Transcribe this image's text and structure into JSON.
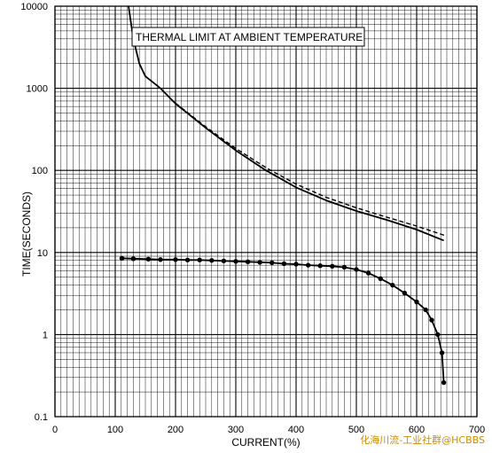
{
  "chart_data": {
    "type": "line",
    "title": "",
    "xlabel": "CURRENT(%)",
    "ylabel": "TIME(SECONDS)",
    "x_scale": "linear",
    "y_scale": "log",
    "xlim": [
      0,
      700
    ],
    "ylim": [
      0.1,
      10000
    ],
    "x_ticks": [
      "0",
      "100",
      "200",
      "300",
      "400",
      "500",
      "600",
      "700"
    ],
    "y_ticks": [
      "0.1",
      "1",
      "10",
      "100",
      "1000",
      "10000"
    ],
    "grid": true,
    "annotation": "THERMAL LIMIT AT AMBIENT TEMPERATURE",
    "series": [
      {
        "style": "solid",
        "points": [
          [
            122,
            10000
          ],
          [
            130,
            4000
          ],
          [
            140,
            2000
          ],
          [
            150,
            1400
          ],
          [
            175,
            1000
          ],
          [
            200,
            650
          ],
          [
            250,
            330
          ],
          [
            300,
            175
          ],
          [
            350,
            100
          ],
          [
            400,
            62
          ],
          [
            450,
            43
          ],
          [
            500,
            32
          ],
          [
            550,
            25
          ],
          [
            600,
            19
          ],
          [
            645,
            14
          ]
        ]
      },
      {
        "style": "dashed",
        "points": [
          [
            200,
            660
          ],
          [
            250,
            340
          ],
          [
            300,
            185
          ],
          [
            350,
            108
          ],
          [
            400,
            68
          ],
          [
            450,
            47
          ],
          [
            500,
            35
          ],
          [
            550,
            27
          ],
          [
            600,
            21
          ],
          [
            648,
            16
          ]
        ]
      },
      {
        "style": "solid-markers",
        "points": [
          [
            111,
            8.5
          ],
          [
            130,
            8.4
          ],
          [
            155,
            8.3
          ],
          [
            175,
            8.2
          ],
          [
            200,
            8.2
          ],
          [
            220,
            8.1
          ],
          [
            240,
            8.1
          ],
          [
            260,
            8.0
          ],
          [
            280,
            7.9
          ],
          [
            300,
            7.8
          ],
          [
            320,
            7.7
          ],
          [
            340,
            7.6
          ],
          [
            360,
            7.5
          ],
          [
            380,
            7.3
          ],
          [
            400,
            7.2
          ],
          [
            420,
            7.0
          ],
          [
            440,
            6.9
          ],
          [
            460,
            6.8
          ],
          [
            480,
            6.6
          ],
          [
            500,
            6.2
          ],
          [
            520,
            5.6
          ],
          [
            540,
            4.8
          ],
          [
            560,
            4.0
          ],
          [
            580,
            3.2
          ],
          [
            600,
            2.5
          ],
          [
            615,
            2.0
          ],
          [
            625,
            1.5
          ],
          [
            635,
            1.0
          ],
          [
            642,
            0.6
          ],
          [
            645,
            0.26
          ]
        ]
      }
    ]
  },
  "watermark": "化海川流-工业社群@HCBBS"
}
